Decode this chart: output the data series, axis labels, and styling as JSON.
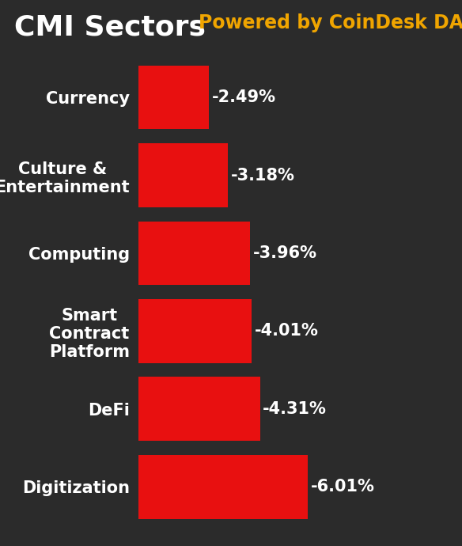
{
  "title_left": "CMI Sectors",
  "title_right": "Powered by CoinDesk DACS",
  "background_color": "#2b2b2b",
  "bar_color": "#e81010",
  "title_left_color": "#ffffff",
  "title_right_color": "#f0a500",
  "label_color": "#ffffff",
  "value_color": "#ffffff",
  "categories": [
    "Currency",
    "Culture &\nEntertainment",
    "Computing",
    "Smart\nContract\nPlatform",
    "DeFi",
    "Digitization"
  ],
  "values": [
    2.49,
    3.18,
    3.96,
    4.01,
    4.31,
    6.01
  ],
  "value_labels": [
    "-2.49%",
    "-3.18%",
    "-3.96%",
    "-4.01%",
    "-4.31%",
    "-6.01%"
  ],
  "title_fontsize": 26,
  "subtitle_fontsize": 17,
  "label_fontsize": 15,
  "value_fontsize": 15
}
